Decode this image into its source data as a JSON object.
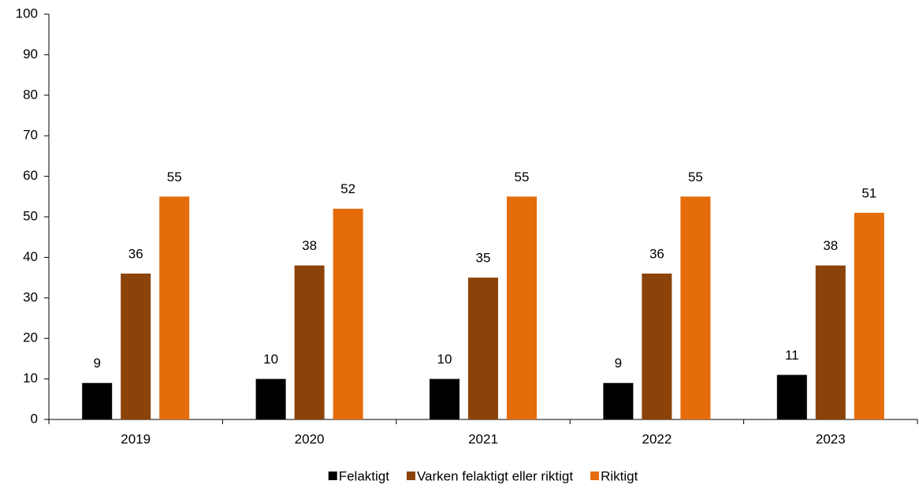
{
  "chart_data": {
    "type": "bar",
    "categories": [
      "2019",
      "2020",
      "2021",
      "2022",
      "2023"
    ],
    "series": [
      {
        "name": "Felaktigt",
        "color": "#000000",
        "values": [
          9,
          10,
          10,
          9,
          11
        ]
      },
      {
        "name": "Varken felaktigt eller riktigt",
        "color": "#8b4309",
        "values": [
          36,
          38,
          35,
          36,
          38
        ]
      },
      {
        "name": "Riktigt",
        "color": "#e46c0a",
        "values": [
          55,
          52,
          55,
          55,
          51
        ]
      }
    ],
    "ylim": [
      0,
      100
    ],
    "yticks": [
      0,
      10,
      20,
      30,
      40,
      50,
      60,
      70,
      80,
      90,
      100
    ],
    "grid": false,
    "legend": "bottom"
  }
}
